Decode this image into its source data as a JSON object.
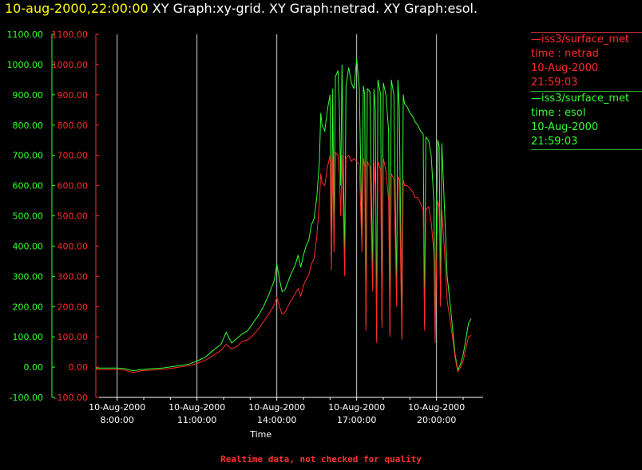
{
  "header": {
    "date_text": "10-aug-2000,22:00:00",
    "graphs_text": " XY Graph:xy-grid.  XY Graph:netrad.  XY Graph:esol."
  },
  "legend": {
    "netrad": {
      "line1": "—iss3/surface_met",
      "line2": "time : netrad",
      "line3": "10-Aug-2000",
      "line4": "21:59:03",
      "color": "#ff2a2a"
    },
    "esol": {
      "line1": "—iss3/surface_met",
      "line2": "time : esol",
      "line3": "10-Aug-2000",
      "line4": "21:59:03",
      "color": "#33ff33"
    }
  },
  "footer": {
    "note": "Realtime data, not checked for quality"
  },
  "chart_data": {
    "type": "line",
    "xlabel": "Time",
    "xlim": [
      7.2,
      21.75
    ],
    "ylim": [
      -100,
      1100
    ],
    "yticks": [
      -100,
      0,
      100,
      200,
      300,
      400,
      500,
      600,
      700,
      800,
      900,
      1000,
      1100
    ],
    "ytick_labels": [
      "-100.00",
      "0.00",
      "100.00",
      "200.00",
      "300.00",
      "400.00",
      "500.00",
      "600.00",
      "700.00",
      "800.00",
      "900.00",
      "1000.00",
      "1100.00"
    ],
    "xticks": [
      8,
      11,
      14,
      17,
      20
    ],
    "xtick_labels": [
      {
        "date": "10-Aug-2000",
        "time": "8:00:00"
      },
      {
        "date": "10-Aug-2000",
        "time": "11:00:00"
      },
      {
        "date": "10-Aug-2000",
        "time": "14:00:00"
      },
      {
        "date": "10-Aug-2000",
        "time": "17:00:00"
      },
      {
        "date": "10-Aug-2000",
        "time": "20:00:00"
      }
    ],
    "vertical_grid": true,
    "series": [
      {
        "name": "netrad",
        "color": "#ff2a2a",
        "points": [
          [
            7.2,
            -8
          ],
          [
            7.6,
            -8
          ],
          [
            8.0,
            -8
          ],
          [
            8.3,
            -10
          ],
          [
            8.6,
            -18
          ],
          [
            8.9,
            -12
          ],
          [
            9.3,
            -10
          ],
          [
            9.7,
            -8
          ],
          [
            10.2,
            -2
          ],
          [
            10.7,
            5
          ],
          [
            11.0,
            12
          ],
          [
            11.3,
            22
          ],
          [
            11.6,
            38
          ],
          [
            11.9,
            55
          ],
          [
            12.1,
            75
          ],
          [
            12.3,
            60
          ],
          [
            12.5,
            68
          ],
          [
            12.7,
            85
          ],
          [
            12.9,
            90
          ],
          [
            13.1,
            105
          ],
          [
            13.3,
            125
          ],
          [
            13.5,
            150
          ],
          [
            13.7,
            175
          ],
          [
            13.9,
            205
          ],
          [
            14.0,
            230
          ],
          [
            14.1,
            200
          ],
          [
            14.2,
            175
          ],
          [
            14.3,
            180
          ],
          [
            14.5,
            215
          ],
          [
            14.7,
            245
          ],
          [
            14.8,
            260
          ],
          [
            14.9,
            235
          ],
          [
            15.0,
            270
          ],
          [
            15.1,
            290
          ],
          [
            15.2,
            305
          ],
          [
            15.3,
            340
          ],
          [
            15.4,
            360
          ],
          [
            15.5,
            430
          ],
          [
            15.6,
            545
          ],
          [
            15.65,
            640
          ],
          [
            15.7,
            610
          ],
          [
            15.8,
            600
          ],
          [
            15.9,
            660
          ],
          [
            16.0,
            700
          ],
          [
            16.05,
            320
          ],
          [
            16.1,
            690
          ],
          [
            16.15,
            380
          ],
          [
            16.2,
            710
          ],
          [
            16.3,
            700
          ],
          [
            16.35,
            640
          ],
          [
            16.4,
            500
          ],
          [
            16.45,
            700
          ],
          [
            16.55,
            300
          ],
          [
            16.6,
            690
          ],
          [
            16.7,
            700
          ],
          [
            16.8,
            680
          ],
          [
            16.9,
            690
          ],
          [
            17.0,
            680
          ],
          [
            17.1,
            670
          ],
          [
            17.2,
            380
          ],
          [
            17.25,
            690
          ],
          [
            17.3,
            660
          ],
          [
            17.35,
            120
          ],
          [
            17.4,
            680
          ],
          [
            17.5,
            660
          ],
          [
            17.6,
            250
          ],
          [
            17.65,
            680
          ],
          [
            17.7,
            600
          ],
          [
            17.75,
            80
          ],
          [
            17.8,
            680
          ],
          [
            17.9,
            650
          ],
          [
            17.95,
            130
          ],
          [
            18.0,
            690
          ],
          [
            18.1,
            650
          ],
          [
            18.2,
            550
          ],
          [
            18.25,
            100
          ],
          [
            18.3,
            640
          ],
          [
            18.4,
            620
          ],
          [
            18.5,
            200
          ],
          [
            18.55,
            630
          ],
          [
            18.6,
            620
          ],
          [
            18.7,
            90
          ],
          [
            18.75,
            620
          ],
          [
            18.8,
            600
          ],
          [
            18.9,
            600
          ],
          [
            19.0,
            590
          ],
          [
            19.1,
            580
          ],
          [
            19.2,
            560
          ],
          [
            19.3,
            560
          ],
          [
            19.4,
            540
          ],
          [
            19.5,
            520
          ],
          [
            19.55,
            120
          ],
          [
            19.6,
            520
          ],
          [
            19.7,
            530
          ],
          [
            19.8,
            480
          ],
          [
            19.9,
            380
          ],
          [
            19.95,
            80
          ],
          [
            20.0,
            350
          ],
          [
            20.05,
            550
          ],
          [
            20.1,
            530
          ],
          [
            20.15,
            200
          ],
          [
            20.2,
            520
          ],
          [
            20.3,
            380
          ],
          [
            20.4,
            220
          ],
          [
            20.5,
            160
          ],
          [
            20.6,
            100
          ],
          [
            20.7,
            30
          ],
          [
            20.8,
            -15
          ],
          [
            20.9,
            0
          ],
          [
            21.0,
            20
          ],
          [
            21.1,
            60
          ],
          [
            21.2,
            100
          ],
          [
            21.3,
            105
          ]
        ]
      },
      {
        "name": "esol",
        "color": "#33ff33",
        "points": [
          [
            7.2,
            -3
          ],
          [
            7.6,
            -3
          ],
          [
            8.0,
            -3
          ],
          [
            8.3,
            -5
          ],
          [
            8.6,
            -12
          ],
          [
            8.9,
            -8
          ],
          [
            9.3,
            -5
          ],
          [
            9.7,
            -3
          ],
          [
            10.2,
            3
          ],
          [
            10.7,
            10
          ],
          [
            11.0,
            20
          ],
          [
            11.3,
            32
          ],
          [
            11.6,
            55
          ],
          [
            11.9,
            75
          ],
          [
            12.1,
            115
          ],
          [
            12.3,
            80
          ],
          [
            12.5,
            95
          ],
          [
            12.7,
            110
          ],
          [
            12.9,
            120
          ],
          [
            13.1,
            145
          ],
          [
            13.3,
            170
          ],
          [
            13.5,
            200
          ],
          [
            13.7,
            240
          ],
          [
            13.9,
            285
          ],
          [
            14.0,
            340
          ],
          [
            14.1,
            290
          ],
          [
            14.2,
            250
          ],
          [
            14.3,
            255
          ],
          [
            14.5,
            300
          ],
          [
            14.7,
            340
          ],
          [
            14.8,
            370
          ],
          [
            14.9,
            330
          ],
          [
            15.0,
            370
          ],
          [
            15.1,
            400
          ],
          [
            15.2,
            420
          ],
          [
            15.3,
            470
          ],
          [
            15.4,
            490
          ],
          [
            15.5,
            560
          ],
          [
            15.6,
            680
          ],
          [
            15.65,
            840
          ],
          [
            15.7,
            800
          ],
          [
            15.8,
            780
          ],
          [
            15.9,
            850
          ],
          [
            16.0,
            900
          ],
          [
            16.05,
            350
          ],
          [
            16.1,
            920
          ],
          [
            16.15,
            400
          ],
          [
            16.2,
            960
          ],
          [
            16.3,
            980
          ],
          [
            16.35,
            860
          ],
          [
            16.4,
            600
          ],
          [
            16.45,
            1000
          ],
          [
            16.55,
            330
          ],
          [
            16.6,
            930
          ],
          [
            16.7,
            990
          ],
          [
            16.8,
            940
          ],
          [
            16.9,
            920
          ],
          [
            17.0,
            1020
          ],
          [
            17.1,
            920
          ],
          [
            17.2,
            420
          ],
          [
            17.25,
            930
          ],
          [
            17.3,
            900
          ],
          [
            17.35,
            140
          ],
          [
            17.4,
            920
          ],
          [
            17.5,
            910
          ],
          [
            17.6,
            280
          ],
          [
            17.65,
            920
          ],
          [
            17.7,
            850
          ],
          [
            17.75,
            90
          ],
          [
            17.8,
            950
          ],
          [
            17.9,
            900
          ],
          [
            17.95,
            150
          ],
          [
            18.0,
            940
          ],
          [
            18.1,
            900
          ],
          [
            18.2,
            780
          ],
          [
            18.25,
            110
          ],
          [
            18.3,
            950
          ],
          [
            18.4,
            900
          ],
          [
            18.5,
            230
          ],
          [
            18.55,
            950
          ],
          [
            18.6,
            860
          ],
          [
            18.7,
            100
          ],
          [
            18.75,
            900
          ],
          [
            18.8,
            870
          ],
          [
            18.9,
            860
          ],
          [
            19.0,
            840
          ],
          [
            19.1,
            830
          ],
          [
            19.2,
            810
          ],
          [
            19.3,
            800
          ],
          [
            19.4,
            780
          ],
          [
            19.5,
            770
          ],
          [
            19.55,
            140
          ],
          [
            19.6,
            760
          ],
          [
            19.7,
            750
          ],
          [
            19.8,
            700
          ],
          [
            19.9,
            550
          ],
          [
            19.95,
            90
          ],
          [
            20.0,
            500
          ],
          [
            20.05,
            750
          ],
          [
            20.1,
            730
          ],
          [
            20.15,
            230
          ],
          [
            20.2,
            740
          ],
          [
            20.3,
            520
          ],
          [
            20.4,
            300
          ],
          [
            20.5,
            220
          ],
          [
            20.6,
            130
          ],
          [
            20.7,
            40
          ],
          [
            20.8,
            -10
          ],
          [
            20.9,
            10
          ],
          [
            21.0,
            40
          ],
          [
            21.1,
            90
          ],
          [
            21.2,
            145
          ],
          [
            21.3,
            160
          ]
        ]
      }
    ]
  }
}
